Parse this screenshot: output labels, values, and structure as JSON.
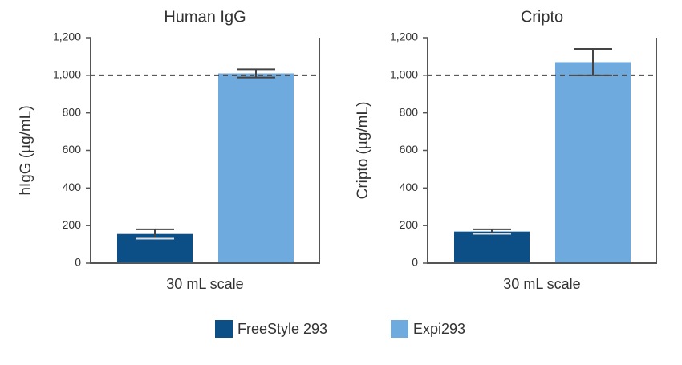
{
  "chart_data": [
    {
      "type": "bar",
      "title": "Human IgG",
      "ylabel": "hIgG (µg/mL)",
      "categories": [
        "30 mL scale"
      ],
      "series": [
        {
          "name": "FreeStyle 293",
          "color": "#0b4f86",
          "values": [
            155
          ],
          "errors": [
            25
          ]
        },
        {
          "name": "Expi293",
          "color": "#6faade",
          "values": [
            1010
          ],
          "errors": [
            22
          ]
        }
      ],
      "reference_line": 1000,
      "ylim": [
        0,
        1200
      ],
      "yticks": [
        0,
        200,
        400,
        600,
        800,
        {
          "value": 1000,
          "label": "1,000"
        },
        {
          "value": 1200,
          "label": "1,200"
        }
      ]
    },
    {
      "type": "bar",
      "title": "Cripto",
      "ylabel": "Cripto (µg/mL)",
      "categories": [
        "30 mL scale"
      ],
      "series": [
        {
          "name": "FreeStyle 293",
          "color": "#0b4f86",
          "values": [
            168
          ],
          "errors": [
            12
          ]
        },
        {
          "name": "Expi293",
          "color": "#6faade",
          "values": [
            1070
          ],
          "errors": [
            70
          ]
        }
      ],
      "reference_line": 1000,
      "ylim": [
        0,
        1200
      ],
      "yticks": [
        0,
        200,
        400,
        600,
        800,
        {
          "value": 1000,
          "label": "1,000"
        },
        {
          "value": 1200,
          "label": "1,200"
        }
      ]
    }
  ]
}
